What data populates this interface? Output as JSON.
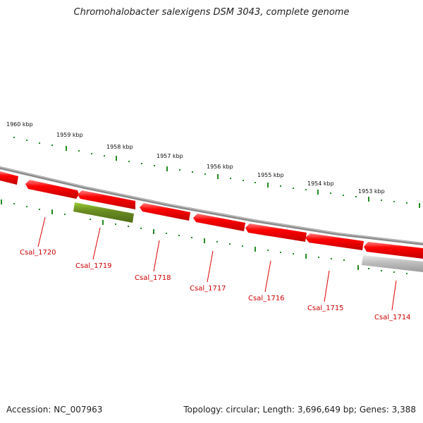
{
  "title": "Chromohalobacter salexigens DSM 3043, complete genome",
  "footer": {
    "accession": "Accession: NC_007963",
    "summary": "Topology: circular; Length: 3,696,649 bp; Genes: 3,388"
  },
  "kbp_labels": [
    "1960 kbp",
    "1959 kbp",
    "1958 kbp",
    "1957 kbp",
    "1956 kbp",
    "1955 kbp",
    "1954 kbp",
    "1953 kbp"
  ],
  "genes": [
    {
      "label": "Csal_1720",
      "type": "protein-coding",
      "strand": "forward"
    },
    {
      "label": "Csal_1719",
      "type": "other",
      "strand": "forward"
    },
    {
      "label": "Csal_1718",
      "type": "protein-coding",
      "strand": "reverse"
    },
    {
      "label": "Csal_1717",
      "type": "protein-coding",
      "strand": "reverse"
    },
    {
      "label": "Csal_1716",
      "type": "protein-coding",
      "strand": "reverse"
    },
    {
      "label": "Csal_1715",
      "type": "protein-coding",
      "strand": "reverse"
    },
    {
      "label": "Csal_1714",
      "type": "unknown",
      "strand": "reverse"
    }
  ],
  "colors": {
    "gene_red": "#ff0000",
    "gene_olive": "#6b8e23",
    "gene_grey": "#b8b8b8",
    "backbone": "#888888",
    "ticks": "#228b22",
    "label_red": "#cc0000"
  }
}
